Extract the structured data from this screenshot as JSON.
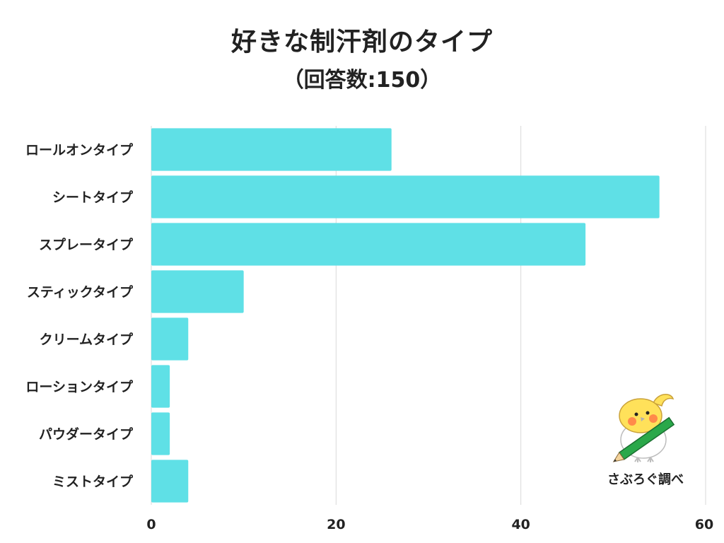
{
  "header": {
    "title": "好きな制汗剤のタイプ",
    "subtitle": "（回答数:150）"
  },
  "credit": {
    "text": "さぶろぐ調べ",
    "icon": "bird-mascot-icon"
  },
  "colors": {
    "bar": "#5fe0e6",
    "grid": "#d9d9d9"
  },
  "chart_data": {
    "type": "bar",
    "orientation": "horizontal",
    "categories": [
      "ロールオンタイプ",
      "シートタイプ",
      "スプレータイプ",
      "スティックタイプ",
      "クリームタイプ",
      "ローションタイプ",
      "パウダータイプ",
      "ミストタイプ"
    ],
    "values": [
      26,
      55,
      47,
      10,
      4,
      2,
      2,
      4
    ],
    "xlim": [
      0,
      60
    ],
    "xticks": [
      0,
      20,
      40,
      60
    ],
    "grid": true,
    "legend": "none"
  }
}
